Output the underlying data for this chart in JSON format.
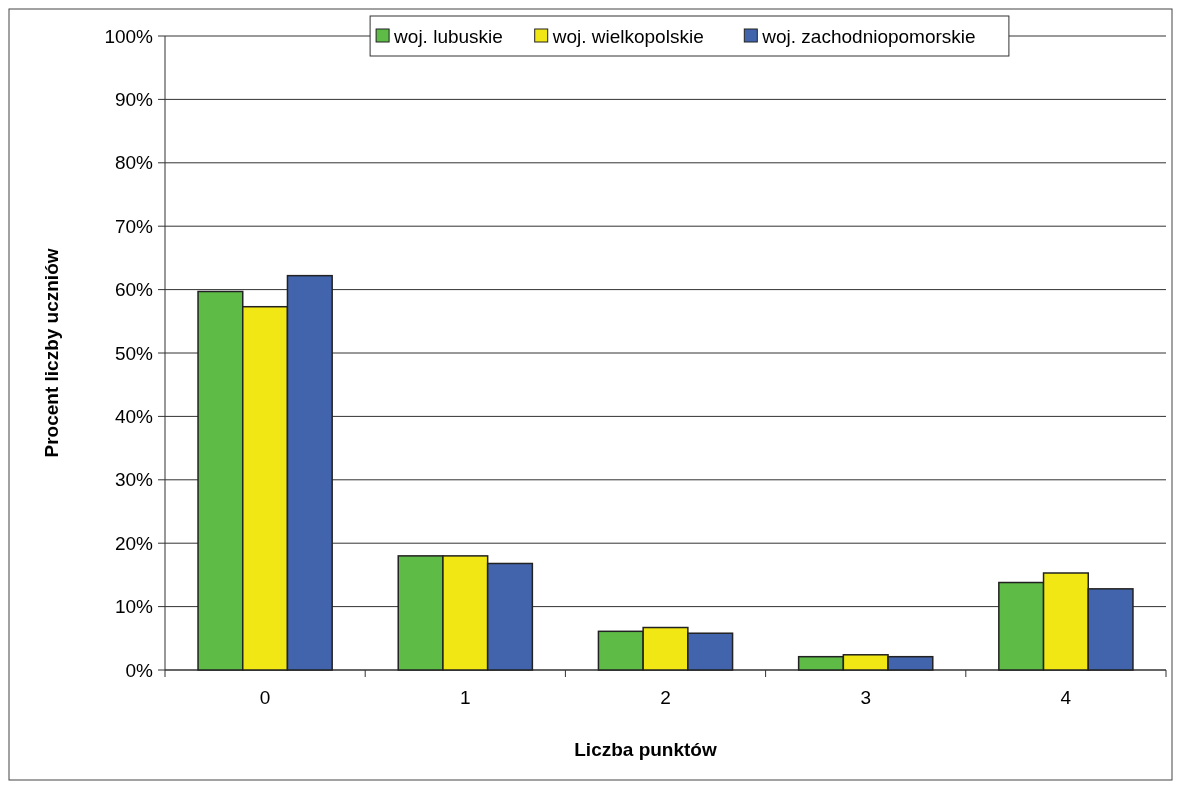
{
  "chart_data": {
    "type": "bar",
    "xlabel": "Liczba punktów",
    "ylabel": "Procent liczby uczniów",
    "categories": [
      "0",
      "1",
      "2",
      "3",
      "4"
    ],
    "series": [
      {
        "name": "woj. lubuskie",
        "color": "#5dbb46",
        "values": [
          59.7,
          18.0,
          6.1,
          2.1,
          13.8
        ]
      },
      {
        "name": "woj. wielkopolskie",
        "color": "#f0e714",
        "values": [
          57.3,
          18.0,
          6.7,
          2.4,
          15.3
        ]
      },
      {
        "name": "woj. zachodniopomorskie",
        "color": "#4264ad",
        "values": [
          62.2,
          16.8,
          5.8,
          2.1,
          12.8
        ]
      }
    ],
    "ylim": [
      0,
      100
    ],
    "yticks": [
      {
        "value": 0,
        "label": "0%"
      },
      {
        "value": 10,
        "label": "10%"
      },
      {
        "value": 20,
        "label": "20%"
      },
      {
        "value": 30,
        "label": "30%"
      },
      {
        "value": 40,
        "label": "40%"
      },
      {
        "value": 50,
        "label": "50%"
      },
      {
        "value": 60,
        "label": "60%"
      },
      {
        "value": 70,
        "label": "70%"
      },
      {
        "value": 80,
        "label": "80%"
      },
      {
        "value": 90,
        "label": "90%"
      },
      {
        "value": 100,
        "label": "100%"
      }
    ],
    "grid": "y",
    "legend": "top"
  }
}
